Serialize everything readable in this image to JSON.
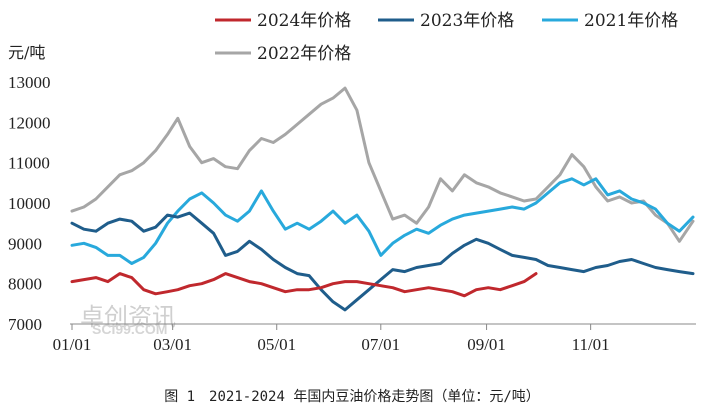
{
  "chart_data": {
    "type": "line",
    "caption": "图 1　2021-2024 年国内豆油价格走势图（单位：元/吨）",
    "unit_label": "元/吨",
    "ylim": [
      7000,
      13000
    ],
    "yticks": [
      7000,
      8000,
      9000,
      10000,
      11000,
      12000,
      13000
    ],
    "xlim": [
      "01/01",
      "12/31"
    ],
    "xticks": [
      "01/01",
      "03/01",
      "05/01",
      "07/01",
      "09/01",
      "11/01"
    ],
    "legend_position": "top",
    "grid": false,
    "watermark": {
      "cn": "卓创资讯",
      "en": "SCI99.COM"
    },
    "series": [
      {
        "name": "2024年价格",
        "color": "#c0282d",
        "points": [
          [
            "01/01",
            8050
          ],
          [
            "01/08",
            8100
          ],
          [
            "01/15",
            8150
          ],
          [
            "01/22",
            8050
          ],
          [
            "01/29",
            8250
          ],
          [
            "02/05",
            8150
          ],
          [
            "02/12",
            7850
          ],
          [
            "02/19",
            7750
          ],
          [
            "02/26",
            7800
          ],
          [
            "03/04",
            7850
          ],
          [
            "03/11",
            7950
          ],
          [
            "03/18",
            8000
          ],
          [
            "03/25",
            8100
          ],
          [
            "04/01",
            8250
          ],
          [
            "04/08",
            8150
          ],
          [
            "04/15",
            8050
          ],
          [
            "04/22",
            8000
          ],
          [
            "04/29",
            7900
          ],
          [
            "05/06",
            7800
          ],
          [
            "05/13",
            7850
          ],
          [
            "05/20",
            7850
          ],
          [
            "05/27",
            7900
          ],
          [
            "06/03",
            8000
          ],
          [
            "06/10",
            8050
          ],
          [
            "06/17",
            8050
          ],
          [
            "06/24",
            8000
          ],
          [
            "07/01",
            7950
          ],
          [
            "07/08",
            7900
          ],
          [
            "07/15",
            7800
          ],
          [
            "07/22",
            7850
          ],
          [
            "07/29",
            7900
          ],
          [
            "08/05",
            7850
          ],
          [
            "08/12",
            7800
          ],
          [
            "08/19",
            7700
          ],
          [
            "08/26",
            7850
          ],
          [
            "09/02",
            7900
          ],
          [
            "09/09",
            7850
          ],
          [
            "09/16",
            7950
          ],
          [
            "09/23",
            8050
          ],
          [
            "09/30",
            8250
          ]
        ]
      },
      {
        "name": "2023年价格",
        "color": "#1f5d8b",
        "points": [
          [
            "01/01",
            9500
          ],
          [
            "01/08",
            9350
          ],
          [
            "01/15",
            9300
          ],
          [
            "01/22",
            9500
          ],
          [
            "01/29",
            9600
          ],
          [
            "02/05",
            9550
          ],
          [
            "02/12",
            9300
          ],
          [
            "02/19",
            9400
          ],
          [
            "02/26",
            9700
          ],
          [
            "03/04",
            9650
          ],
          [
            "03/11",
            9750
          ],
          [
            "03/18",
            9500
          ],
          [
            "03/25",
            9250
          ],
          [
            "04/01",
            8700
          ],
          [
            "04/08",
            8800
          ],
          [
            "04/15",
            9050
          ],
          [
            "04/22",
            8850
          ],
          [
            "04/29",
            8600
          ],
          [
            "05/06",
            8400
          ],
          [
            "05/13",
            8250
          ],
          [
            "05/20",
            8200
          ],
          [
            "05/27",
            7850
          ],
          [
            "06/03",
            7550
          ],
          [
            "06/10",
            7350
          ],
          [
            "06/17",
            7600
          ],
          [
            "06/24",
            7850
          ],
          [
            "07/01",
            8100
          ],
          [
            "07/08",
            8350
          ],
          [
            "07/15",
            8300
          ],
          [
            "07/22",
            8400
          ],
          [
            "07/29",
            8450
          ],
          [
            "08/05",
            8500
          ],
          [
            "08/12",
            8750
          ],
          [
            "08/19",
            8950
          ],
          [
            "08/26",
            9100
          ],
          [
            "09/02",
            9000
          ],
          [
            "09/09",
            8850
          ],
          [
            "09/16",
            8700
          ],
          [
            "09/23",
            8650
          ],
          [
            "09/30",
            8600
          ],
          [
            "10/07",
            8450
          ],
          [
            "10/14",
            8400
          ],
          [
            "10/21",
            8350
          ],
          [
            "10/28",
            8300
          ],
          [
            "11/04",
            8400
          ],
          [
            "11/11",
            8450
          ],
          [
            "11/18",
            8550
          ],
          [
            "11/25",
            8600
          ],
          [
            "12/02",
            8500
          ],
          [
            "12/09",
            8400
          ],
          [
            "12/16",
            8350
          ],
          [
            "12/23",
            8300
          ],
          [
            "12/31",
            8250
          ]
        ]
      },
      {
        "name": "2021年价格",
        "color": "#28a9dc",
        "points": [
          [
            "01/01",
            8950
          ],
          [
            "01/08",
            9000
          ],
          [
            "01/15",
            8900
          ],
          [
            "01/22",
            8700
          ],
          [
            "01/29",
            8700
          ],
          [
            "02/05",
            8500
          ],
          [
            "02/12",
            8650
          ],
          [
            "02/19",
            9000
          ],
          [
            "02/26",
            9500
          ],
          [
            "03/04",
            9800
          ],
          [
            "03/11",
            10100
          ],
          [
            "03/18",
            10250
          ],
          [
            "03/25",
            10000
          ],
          [
            "04/01",
            9700
          ],
          [
            "04/08",
            9550
          ],
          [
            "04/15",
            9800
          ],
          [
            "04/22",
            10300
          ],
          [
            "04/29",
            9800
          ],
          [
            "05/06",
            9350
          ],
          [
            "05/13",
            9500
          ],
          [
            "05/20",
            9350
          ],
          [
            "05/27",
            9550
          ],
          [
            "06/03",
            9800
          ],
          [
            "06/10",
            9500
          ],
          [
            "06/17",
            9700
          ],
          [
            "06/24",
            9300
          ],
          [
            "07/01",
            8700
          ],
          [
            "07/08",
            9000
          ],
          [
            "07/15",
            9200
          ],
          [
            "07/22",
            9350
          ],
          [
            "07/29",
            9250
          ],
          [
            "08/05",
            9450
          ],
          [
            "08/12",
            9600
          ],
          [
            "08/19",
            9700
          ],
          [
            "08/26",
            9750
          ],
          [
            "09/02",
            9800
          ],
          [
            "09/09",
            9850
          ],
          [
            "09/16",
            9900
          ],
          [
            "09/23",
            9850
          ],
          [
            "09/30",
            10000
          ],
          [
            "10/07",
            10250
          ],
          [
            "10/14",
            10500
          ],
          [
            "10/21",
            10600
          ],
          [
            "10/28",
            10450
          ],
          [
            "11/04",
            10600
          ],
          [
            "11/11",
            10200
          ],
          [
            "11/18",
            10300
          ],
          [
            "11/25",
            10100
          ],
          [
            "12/02",
            10000
          ],
          [
            "12/09",
            9850
          ],
          [
            "12/16",
            9500
          ],
          [
            "12/23",
            9300
          ],
          [
            "12/31",
            9650
          ]
        ]
      },
      {
        "name": "2022年价格",
        "color": "#a6a6a6",
        "points": [
          [
            "01/01",
            9800
          ],
          [
            "01/08",
            9900
          ],
          [
            "01/15",
            10100
          ],
          [
            "01/22",
            10400
          ],
          [
            "01/29",
            10700
          ],
          [
            "02/05",
            10800
          ],
          [
            "02/12",
            11000
          ],
          [
            "02/19",
            11300
          ],
          [
            "02/26",
            11700
          ],
          [
            "03/04",
            12100
          ],
          [
            "03/11",
            11400
          ],
          [
            "03/18",
            11000
          ],
          [
            "03/25",
            11100
          ],
          [
            "04/01",
            10900
          ],
          [
            "04/08",
            10850
          ],
          [
            "04/15",
            11300
          ],
          [
            "04/22",
            11600
          ],
          [
            "04/29",
            11500
          ],
          [
            "05/06",
            11700
          ],
          [
            "05/13",
            11950
          ],
          [
            "05/20",
            12200
          ],
          [
            "05/27",
            12450
          ],
          [
            "06/03",
            12600
          ],
          [
            "06/10",
            12850
          ],
          [
            "06/17",
            12300
          ],
          [
            "06/24",
            11000
          ],
          [
            "07/01",
            10300
          ],
          [
            "07/08",
            9600
          ],
          [
            "07/15",
            9700
          ],
          [
            "07/22",
            9500
          ],
          [
            "07/29",
            9900
          ],
          [
            "08/05",
            10600
          ],
          [
            "08/12",
            10300
          ],
          [
            "08/19",
            10700
          ],
          [
            "08/26",
            10500
          ],
          [
            "09/02",
            10400
          ],
          [
            "09/09",
            10250
          ],
          [
            "09/16",
            10150
          ],
          [
            "09/23",
            10050
          ],
          [
            "09/30",
            10100
          ],
          [
            "10/07",
            10400
          ],
          [
            "10/14",
            10700
          ],
          [
            "10/21",
            11200
          ],
          [
            "10/28",
            10900
          ],
          [
            "11/04",
            10400
          ],
          [
            "11/11",
            10050
          ],
          [
            "11/18",
            10150
          ],
          [
            "11/25",
            10000
          ],
          [
            "12/02",
            10050
          ],
          [
            "12/09",
            9700
          ],
          [
            "12/16",
            9500
          ],
          [
            "12/23",
            9050
          ],
          [
            "12/31",
            9550
          ]
        ]
      }
    ]
  }
}
